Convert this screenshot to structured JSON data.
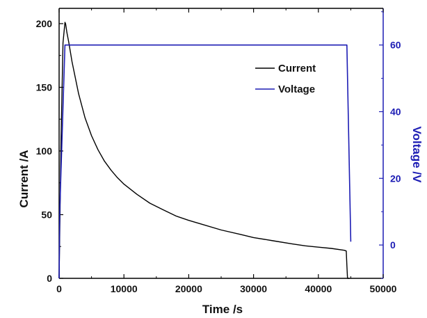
{
  "chart_data": {
    "type": "line",
    "title": "",
    "xlabel": "Time /s",
    "ylabel_left": "Current /A",
    "ylabel_right": "Voltage /V",
    "xlim": [
      0,
      50000
    ],
    "ylim_left": [
      0,
      212
    ],
    "ylim_right": [
      -10,
      71
    ],
    "x_ticks": [
      "0",
      "10000",
      "20000",
      "30000",
      "40000",
      "50000"
    ],
    "y_left_ticks": [
      "0",
      "50",
      "100",
      "150",
      "200"
    ],
    "y_right_ticks": [
      "0",
      "20",
      "40",
      "60"
    ],
    "grid": false,
    "legend_position": "top-right",
    "series": [
      {
        "name": "Current",
        "axis": "left",
        "color": "#000000",
        "x": [
          0,
          300,
          600,
          900,
          1000,
          1200,
          1500,
          2000,
          3000,
          4000,
          5000,
          6000,
          7000,
          8000,
          9000,
          10000,
          12000,
          14000,
          16000,
          18000,
          20000,
          22000,
          25000,
          28000,
          30000,
          33000,
          36000,
          38000,
          40000,
          42000,
          44000,
          44300,
          44400,
          44500,
          44800
        ],
        "y": [
          0,
          110,
          185,
          201,
          200,
          193,
          185,
          170,
          145,
          126,
          112,
          101,
          92,
          85,
          79,
          74,
          66,
          59,
          54,
          49,
          45.5,
          42.5,
          38,
          34.5,
          32,
          29.5,
          27,
          25.5,
          24.5,
          23.5,
          22,
          21.5,
          10,
          0,
          0
        ]
      },
      {
        "name": "Voltage",
        "axis": "right",
        "color": "#1c1cb4",
        "x": [
          0,
          100,
          900,
          1000,
          44300,
          44400,
          45000
        ],
        "y": [
          -10,
          10,
          60,
          60,
          60,
          60,
          1
        ]
      }
    ]
  }
}
